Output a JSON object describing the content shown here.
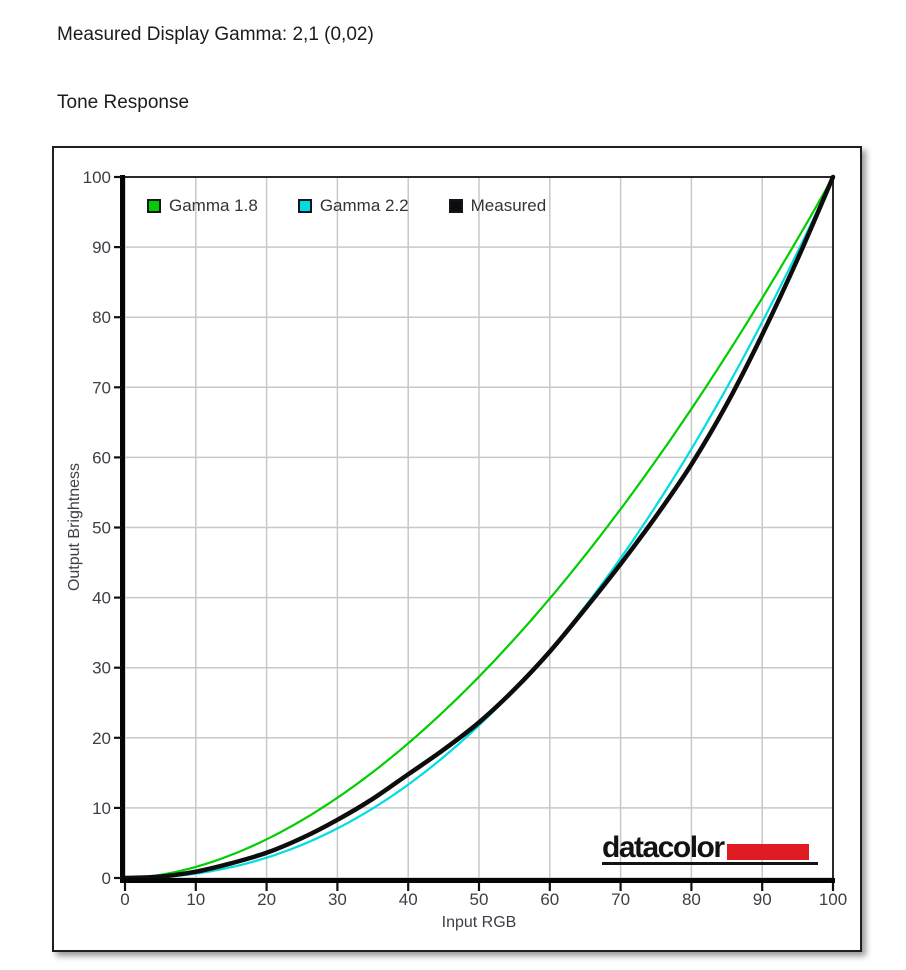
{
  "page": {
    "measured_gamma_label": "Measured Display Gamma: 2,1 (0,02)",
    "section_title": "Tone Response"
  },
  "chart_data": {
    "type": "line",
    "title": "Tone Response",
    "xlabel": "Input RGB",
    "ylabel": "Output Brightness",
    "xlim": [
      0,
      100
    ],
    "ylim": [
      0,
      100
    ],
    "xticks": [
      0,
      10,
      20,
      30,
      40,
      50,
      60,
      70,
      80,
      90,
      100
    ],
    "yticks": [
      0,
      10,
      20,
      30,
      40,
      50,
      60,
      70,
      80,
      90,
      100
    ],
    "grid": true,
    "grid_color": "#c8c8c8",
    "legend_position": "top-left-inside",
    "series": [
      {
        "name": "Gamma 1.8",
        "type": "gamma",
        "gamma": 1.8,
        "color": "#00CE00",
        "width": 2.2
      },
      {
        "name": "Gamma 2.2",
        "type": "gamma",
        "gamma": 2.2,
        "color": "#00DDE2",
        "width": 2.2
      },
      {
        "name": "Measured",
        "type": "points",
        "color": "#0d0d0d",
        "width": 4.5,
        "x": [
          0,
          5,
          10,
          15,
          20,
          25,
          30,
          35,
          40,
          45,
          50,
          55,
          60,
          65,
          70,
          75,
          80,
          85,
          90,
          95,
          100
        ],
        "y": [
          0,
          0.2,
          0.9,
          2.1,
          3.6,
          5.7,
          8.3,
          11.3,
          14.8,
          18.3,
          22.2,
          26.9,
          32.3,
          38.4,
          44.8,
          51.6,
          59.0,
          67.6,
          77.5,
          88.3,
          100
        ]
      }
    ]
  },
  "logo": {
    "text": "datacolor",
    "accent_color": "#E11B22"
  }
}
